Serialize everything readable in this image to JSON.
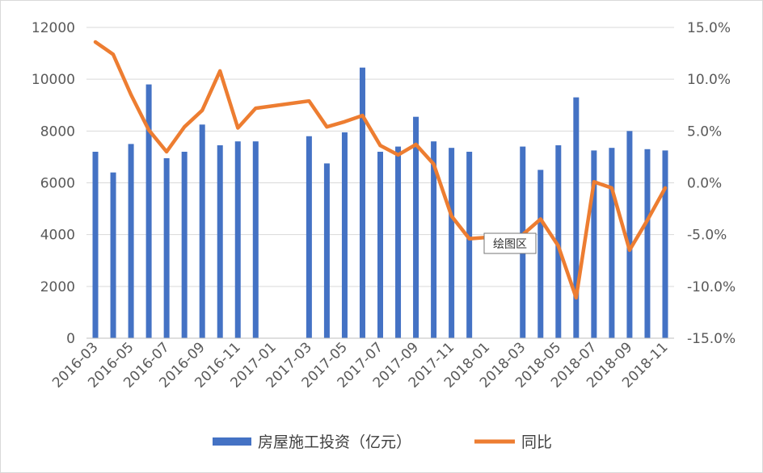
{
  "chart_data": {
    "type": "bar",
    "x": [
      "2016-03",
      "2016-04",
      "2016-05",
      "2016-06",
      "2016-07",
      "2016-08",
      "2016-09",
      "2016-10",
      "2016-11",
      "2016-12",
      "2017-01",
      "2017-02",
      "2017-03",
      "2017-04",
      "2017-05",
      "2017-06",
      "2017-07",
      "2017-08",
      "2017-09",
      "2017-10",
      "2017-11",
      "2017-12",
      "2018-01",
      "2018-02",
      "2018-03",
      "2018-04",
      "2018-05",
      "2018-06",
      "2018-07",
      "2018-08",
      "2018-09",
      "2018-10",
      "2018-11"
    ],
    "x_tick_labels": [
      "2016-03",
      "2016-05",
      "2016-07",
      "2016-09",
      "2016-11",
      "2017-01",
      "2017-03",
      "2017-05",
      "2017-07",
      "2017-09",
      "2017-11",
      "2018-01",
      "2018-03",
      "2018-05",
      "2018-07",
      "2018-09",
      "2018-11"
    ],
    "series": [
      {
        "name": "房屋施工投资（亿元）",
        "type": "bar",
        "axis": "left",
        "color": "#4472C4",
        "values": [
          7200,
          6400,
          7500,
          9800,
          6950,
          7200,
          8250,
          7450,
          7600,
          7600,
          null,
          null,
          7800,
          6750,
          7950,
          10450,
          7200,
          7400,
          8550,
          7600,
          7350,
          7200,
          null,
          null,
          7400,
          6500,
          7450,
          9300,
          7250,
          7350,
          8000,
          7300,
          7250
        ]
      },
      {
        "name": "同比",
        "type": "line",
        "axis": "right",
        "color": "#ED7D31",
        "values": [
          13.6,
          12.4,
          8.5,
          5.1,
          3.0,
          5.4,
          7.0,
          10.8,
          5.3,
          7.2,
          null,
          null,
          7.9,
          5.4,
          5.9,
          6.5,
          3.6,
          2.7,
          3.7,
          1.8,
          -3.2,
          -5.4,
          null,
          null,
          -5.0,
          -3.5,
          -6.1,
          -11.1,
          0.1,
          -0.5,
          -6.5,
          -3.6,
          -0.5
        ]
      }
    ],
    "y_left": {
      "ylim": [
        0,
        12000
      ],
      "ticks": [
        "0",
        "2000",
        "4000",
        "6000",
        "8000",
        "10000",
        "12000"
      ]
    },
    "y_right": {
      "ylim": [
        -15,
        15
      ],
      "ticks": [
        "-15.0%",
        "-10.0%",
        "-5.0%",
        "0.0%",
        "5.0%",
        "10.0%",
        "15.0%"
      ]
    },
    "grid": true,
    "legend_position": "bottom",
    "tooltip": "绘图区"
  }
}
